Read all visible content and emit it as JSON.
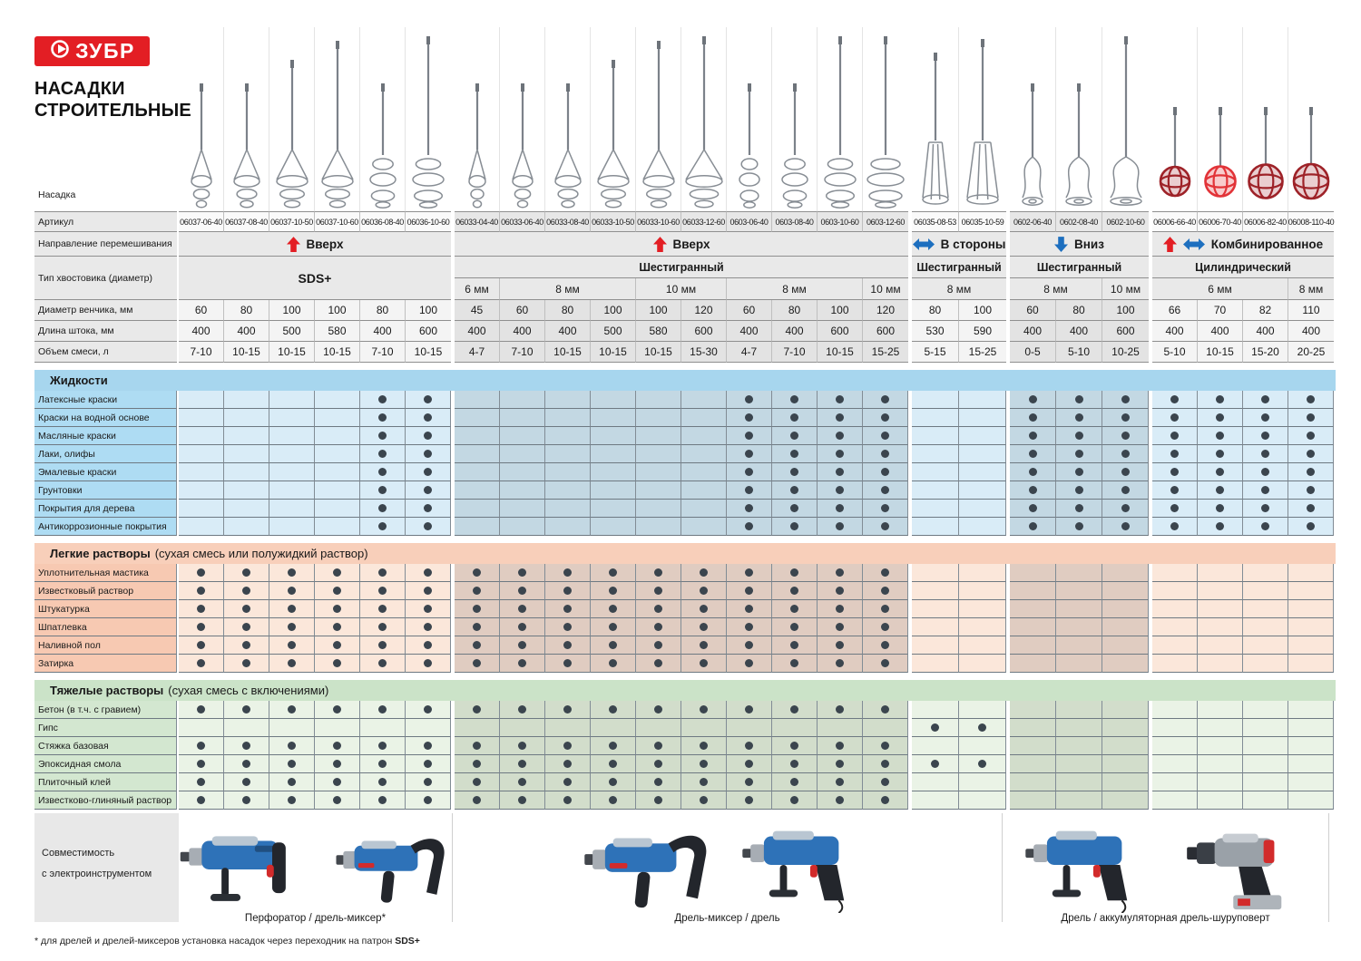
{
  "brand": {
    "logo_text": "ЗУБР",
    "title_line1": "НАСАДКИ",
    "title_line2": "СТРОИТЕЛЬНЫЕ"
  },
  "colors": {
    "brand_red": "#e31e24",
    "arrow_blue": "#1d6fbf",
    "dot": "#3b454e",
    "liquids_header": "#a7d6ee",
    "light_mortar_header": "#f8cfba",
    "heavy_mortar_header": "#cbe3c8"
  },
  "row_labels": {
    "nozzle": "Насадка",
    "article": "Артикул",
    "direction": "Направление перемешивания",
    "shank": "Тип хвостовика (диаметр)",
    "diameter": "Диаметр венчика, мм",
    "length": "Длина штока, мм",
    "volume": "Объем смеси, л"
  },
  "groups": [
    {
      "direction": "Вверх",
      "arrows": [
        "up"
      ],
      "shank": "SDS+",
      "shank_merged": true,
      "sizes": [],
      "columns": [
        {
          "article": "06037-06-40",
          "diameter": "60",
          "length": "400",
          "volume": "7-10",
          "mixer": "whisk"
        },
        {
          "article": "06037-08-40",
          "diameter": "80",
          "length": "400",
          "volume": "10-15",
          "mixer": "whisk"
        },
        {
          "article": "06037-10-50",
          "diameter": "100",
          "length": "500",
          "volume": "10-15",
          "mixer": "whisk"
        },
        {
          "article": "06037-10-60",
          "diameter": "100",
          "length": "580",
          "volume": "10-15",
          "mixer": "whisk"
        },
        {
          "article": "06036-08-40",
          "diameter": "80",
          "length": "400",
          "volume": "7-10",
          "mixer": "whisk2"
        },
        {
          "article": "06036-10-60",
          "diameter": "100",
          "length": "600",
          "volume": "10-15",
          "mixer": "whisk2"
        }
      ]
    },
    {
      "direction": "Вверх",
      "arrows": [
        "up"
      ],
      "shank": "Шестигранный",
      "shank_merged": false,
      "sizes": [
        {
          "label": "6 мм",
          "span": 1
        },
        {
          "label": "8 мм",
          "span": 3
        },
        {
          "label": "10 мм",
          "span": 2
        },
        {
          "label": "8 мм",
          "span": 3
        },
        {
          "label": "10 мм",
          "span": 1
        }
      ],
      "columns": [
        {
          "article": "06033-04-40",
          "diameter": "45",
          "length": "400",
          "volume": "4-7",
          "mixer": "whisk"
        },
        {
          "article": "06033-06-40",
          "diameter": "60",
          "length": "400",
          "volume": "7-10",
          "mixer": "whisk"
        },
        {
          "article": "06033-08-40",
          "diameter": "80",
          "length": "400",
          "volume": "10-15",
          "mixer": "whisk"
        },
        {
          "article": "06033-10-50",
          "diameter": "100",
          "length": "500",
          "volume": "10-15",
          "mixer": "whisk"
        },
        {
          "article": "06033-10-60",
          "diameter": "100",
          "length": "580",
          "volume": "10-15",
          "mixer": "whisk"
        },
        {
          "article": "06033-12-60",
          "diameter": "120",
          "length": "600",
          "volume": "15-30",
          "mixer": "whisk"
        },
        {
          "article": "0603-06-40",
          "diameter": "60",
          "length": "400",
          "volume": "4-7",
          "mixer": "whisk2"
        },
        {
          "article": "0603-08-40",
          "diameter": "80",
          "length": "400",
          "volume": "7-10",
          "mixer": "whisk2"
        },
        {
          "article": "0603-10-60",
          "diameter": "100",
          "length": "600",
          "volume": "10-15",
          "mixer": "whisk2"
        },
        {
          "article": "0603-12-60",
          "diameter": "120",
          "length": "600",
          "volume": "15-25",
          "mixer": "whisk2"
        }
      ]
    },
    {
      "direction": "В стороны",
      "arrows": [
        "lr"
      ],
      "shank": "Шестигранный",
      "shank_merged": false,
      "sizes": [
        {
          "label": "8 мм",
          "span": 2
        }
      ],
      "columns": [
        {
          "article": "06035-08-53",
          "diameter": "80",
          "length": "530",
          "volume": "5-15",
          "mixer": "cage"
        },
        {
          "article": "06035-10-59",
          "diameter": "100",
          "length": "590",
          "volume": "15-25",
          "mixer": "cage"
        }
      ]
    },
    {
      "direction": "Вниз",
      "arrows": [
        "down"
      ],
      "shank": "Шестигранный",
      "shank_merged": false,
      "sizes": [
        {
          "label": "8 мм",
          "span": 2
        },
        {
          "label": "10 мм",
          "span": 1
        }
      ],
      "columns": [
        {
          "article": "0602-06-40",
          "diameter": "60",
          "length": "400",
          "volume": "0-5",
          "mixer": "disc"
        },
        {
          "article": "0602-08-40",
          "diameter": "80",
          "length": "400",
          "volume": "5-10",
          "mixer": "disc"
        },
        {
          "article": "0602-10-60",
          "diameter": "100",
          "length": "600",
          "volume": "10-25",
          "mixer": "disc"
        }
      ]
    },
    {
      "direction": "Комбинированное",
      "arrows": [
        "up",
        "lr"
      ],
      "shank": "Цилиндрический",
      "shank_merged": false,
      "sizes": [
        {
          "label": "6 мм",
          "span": 3
        },
        {
          "label": "8 мм",
          "span": 1
        }
      ],
      "columns": [
        {
          "article": "06006-66-40",
          "diameter": "66",
          "length": "400",
          "volume": "5-10",
          "mixer": "ball"
        },
        {
          "article": "06006-70-40",
          "diameter": "70",
          "length": "400",
          "volume": "10-15",
          "mixer": "ball2"
        },
        {
          "article": "06006-82-40",
          "diameter": "82",
          "length": "400",
          "volume": "15-20",
          "mixer": "ball"
        },
        {
          "article": "06008-110-40",
          "diameter": "110",
          "length": "400",
          "volume": "20-25",
          "mixer": "ball"
        }
      ]
    }
  ],
  "sections": [
    {
      "id": "liquids",
      "title": "Жидкости",
      "subtitle": "",
      "theme": "blue",
      "rows": [
        {
          "label": "Латексные краски",
          "marks": [
            4,
            5,
            12,
            13,
            14,
            15,
            18,
            19,
            20,
            21,
            22,
            23,
            24
          ]
        },
        {
          "label": "Краски на водной основе",
          "marks": [
            4,
            5,
            12,
            13,
            14,
            15,
            18,
            19,
            20,
            21,
            22,
            23,
            24
          ]
        },
        {
          "label": "Масляные краски",
          "marks": [
            4,
            5,
            12,
            13,
            14,
            15,
            18,
            19,
            20,
            21,
            22,
            23,
            24
          ]
        },
        {
          "label": "Лаки, олифы",
          "marks": [
            4,
            5,
            12,
            13,
            14,
            15,
            18,
            19,
            20,
            21,
            22,
            23,
            24
          ]
        },
        {
          "label": "Эмалевые краски",
          "marks": [
            4,
            5,
            12,
            13,
            14,
            15,
            18,
            19,
            20,
            21,
            22,
            23,
            24
          ]
        },
        {
          "label": "Грунтовки",
          "marks": [
            4,
            5,
            12,
            13,
            14,
            15,
            18,
            19,
            20,
            21,
            22,
            23,
            24
          ]
        },
        {
          "label": "Покрытия для дерева",
          "marks": [
            4,
            5,
            12,
            13,
            14,
            15,
            18,
            19,
            20,
            21,
            22,
            23,
            24
          ]
        },
        {
          "label": "Антикоррозионные покрытия",
          "marks": [
            4,
            5,
            12,
            13,
            14,
            15,
            18,
            19,
            20,
            21,
            22,
            23,
            24
          ]
        }
      ]
    },
    {
      "id": "light_mortars",
      "title": "Легкие растворы",
      "subtitle": "(сухая смесь или полужидкий раствор)",
      "theme": "peach",
      "rows": [
        {
          "label": "Уплотнительная мастика",
          "marks": [
            0,
            1,
            2,
            3,
            4,
            5,
            6,
            7,
            8,
            9,
            10,
            11,
            12,
            13,
            14,
            15
          ]
        },
        {
          "label": "Известковый раствор",
          "marks": [
            0,
            1,
            2,
            3,
            4,
            5,
            6,
            7,
            8,
            9,
            10,
            11,
            12,
            13,
            14,
            15
          ]
        },
        {
          "label": "Штукатурка",
          "marks": [
            0,
            1,
            2,
            3,
            4,
            5,
            6,
            7,
            8,
            9,
            10,
            11,
            12,
            13,
            14,
            15
          ]
        },
        {
          "label": "Шпатлевка",
          "marks": [
            0,
            1,
            2,
            3,
            4,
            5,
            6,
            7,
            8,
            9,
            10,
            11,
            12,
            13,
            14,
            15
          ]
        },
        {
          "label": "Наливной пол",
          "marks": [
            0,
            1,
            2,
            3,
            4,
            5,
            6,
            7,
            8,
            9,
            10,
            11,
            12,
            13,
            14,
            15
          ]
        },
        {
          "label": "Затирка",
          "marks": [
            0,
            1,
            2,
            3,
            4,
            5,
            6,
            7,
            8,
            9,
            10,
            11,
            12,
            13,
            14,
            15
          ]
        }
      ]
    },
    {
      "id": "heavy_mortars",
      "title": "Тяжелые растворы",
      "subtitle": "(сухая смесь с включениями)",
      "theme": "green",
      "rows": [
        {
          "label": "Бетон (в т.ч. с гравием)",
          "marks": [
            0,
            1,
            2,
            3,
            4,
            5,
            6,
            7,
            8,
            9,
            10,
            11,
            12,
            13,
            14,
            15
          ]
        },
        {
          "label": "Гипс",
          "marks": [
            16,
            17
          ]
        },
        {
          "label": "Стяжка базовая",
          "marks": [
            0,
            1,
            2,
            3,
            4,
            5,
            6,
            7,
            8,
            9,
            10,
            11,
            12,
            13,
            14,
            15
          ]
        },
        {
          "label": "Эпоксидная смола",
          "marks": [
            0,
            1,
            2,
            3,
            4,
            5,
            6,
            7,
            8,
            9,
            10,
            11,
            12,
            13,
            14,
            15,
            16,
            17
          ]
        },
        {
          "label": "Плиточный клей",
          "marks": [
            0,
            1,
            2,
            3,
            4,
            5,
            6,
            7,
            8,
            9,
            10,
            11,
            12,
            13,
            14,
            15
          ]
        },
        {
          "label": "Известково-глиняный раствор",
          "marks": [
            0,
            1,
            2,
            3,
            4,
            5,
            6,
            7,
            8,
            9,
            10,
            11,
            12,
            13,
            14,
            15
          ]
        }
      ]
    }
  ],
  "compatibility": {
    "label_line1": "Совместимость",
    "label_line2": "с электроинструментом",
    "zones": [
      {
        "label": "Перфоратор / дрель-миксер*",
        "tools": [
          "perforator",
          "mixer_drill"
        ]
      },
      {
        "label": "Дрель-миксер / дрель",
        "tools": [
          "mixer_drill",
          "drill"
        ]
      },
      {
        "label": "Дрель / аккумуляторная дрель-шуруповерт",
        "tools": [
          "drill",
          "cordless"
        ]
      }
    ]
  },
  "footnote": {
    "marker": "* ",
    "text": "для дрелей и дрелей-миксеров установка насадок через переходник на патрон ",
    "bold": "SDS+"
  }
}
